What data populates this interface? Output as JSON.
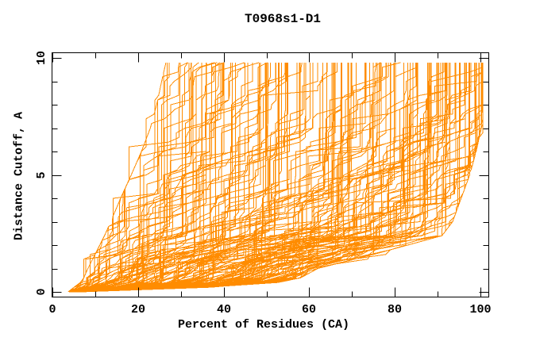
{
  "page": {
    "background": "#ffffff",
    "text_color": "#000000"
  },
  "chart_data": {
    "type": "line",
    "title": "T0968s1-D1",
    "xlabel": "Percent of Residues (CA)",
    "ylabel": "Distance Cutoff, A",
    "xlim": [
      0,
      102
    ],
    "ylim": [
      -0.2,
      10.2
    ],
    "grid": false,
    "legend": "none",
    "axis_color": "#000000",
    "series_color": "#ff8c00",
    "x_ticks": {
      "major": [
        0,
        20,
        40,
        60,
        80,
        100
      ],
      "minor": [
        10,
        30,
        50,
        70,
        90
      ]
    },
    "y_ticks": {
      "major": [
        0,
        5,
        10
      ],
      "minor": [
        1,
        2,
        3,
        4,
        6,
        7,
        8,
        9
      ]
    },
    "series_description": "Approximately 170 overlapping per-model cumulative accuracy curves (percent of CA residues under each distance cutoff); no legend, all drawn in the same orange.",
    "curves": {
      "count": 170,
      "seed": 968,
      "color": "#ff8c00",
      "y_top": 9.8,
      "y_step": 0.2,
      "x_max": 100.6,
      "start_x_range": [
        2.6,
        6.2
      ],
      "left_envelope": [
        [
          0,
          2.8
        ],
        [
          0.3,
          5.2
        ],
        [
          0.6,
          6.3
        ],
        [
          1,
          7.2
        ],
        [
          1.5,
          8.4
        ],
        [
          2,
          9.6
        ],
        [
          3,
          12
        ],
        [
          4,
          14.3
        ],
        [
          5,
          16.8
        ],
        [
          6,
          19.2
        ],
        [
          7,
          21.3
        ],
        [
          8,
          22.8
        ],
        [
          9,
          24
        ],
        [
          9.8,
          25
        ]
      ],
      "right_envelope": [
        [
          0,
          7
        ],
        [
          0.15,
          30
        ],
        [
          0.3,
          50
        ],
        [
          0.6,
          58
        ],
        [
          1,
          62
        ],
        [
          1.6,
          75
        ],
        [
          2.4,
          91
        ],
        [
          3,
          93.5
        ],
        [
          4,
          95.5
        ],
        [
          5,
          97.5
        ],
        [
          6,
          99
        ],
        [
          7,
          100.2
        ],
        [
          8,
          100.4
        ],
        [
          9.8,
          100.5
        ]
      ]
    }
  }
}
